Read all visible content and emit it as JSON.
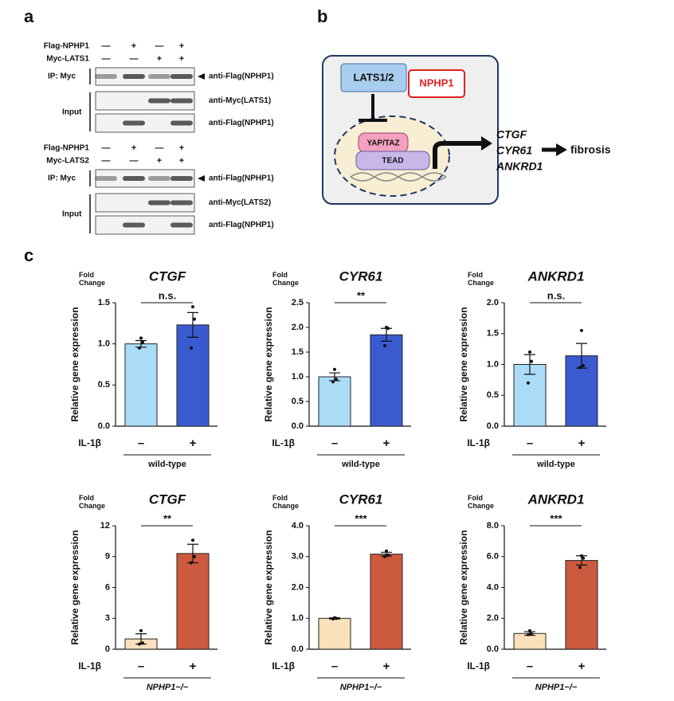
{
  "panel_labels": [
    "a",
    "b",
    "c"
  ],
  "blot": {
    "blocks": [
      {
        "rows": [
          {
            "label": "Flag-NPHP1",
            "signs": [
              "—",
              "+",
              "—",
              "+"
            ]
          },
          {
            "label": "Myc-LATS1",
            "signs": [
              "—",
              "—",
              "+",
              "+"
            ]
          }
        ],
        "ip_label": "IP: Myc",
        "input_label": "Input",
        "antibodies": [
          "anti-Flag(NPHP1)",
          "anti-Myc(LATS1)",
          "anti-Flag(NPHP1)"
        ]
      },
      {
        "rows": [
          {
            "label": "Flag-NPHP1",
            "signs": [
              "—",
              "+",
              "—",
              "+"
            ]
          },
          {
            "label": "Myc-LATS2",
            "signs": [
              "—",
              "—",
              "+",
              "+"
            ]
          }
        ],
        "ip_label": "IP: Myc",
        "input_label": "Input",
        "antibodies": [
          "anti-Flag(NPHP1)",
          "anti-Myc(LATS2)",
          "anti-Flag(NPHP1)"
        ]
      }
    ]
  },
  "diagram": {
    "kinase": "LATS1/2",
    "inhibitor": "NPHP1",
    "coactivator": "YAP/TAZ",
    "factor": "TEAD",
    "targets": [
      "CTGF",
      "CYR61",
      "ANKRD1"
    ],
    "outcome": "fibrosis"
  },
  "chart_data": [
    {
      "type": "bar",
      "title": "CTGF",
      "y_unit": "Fold Change",
      "ylabel": "Relative gene expression",
      "xlabel": "IL-1β",
      "categories": [
        "–",
        "+"
      ],
      "group": "wild-type",
      "group_italic": false,
      "values": [
        1.0,
        1.23
      ],
      "errors": [
        0.04,
        0.15
      ],
      "points": [
        [
          1.07,
          1.02,
          0.95
        ],
        [
          1.45,
          1.3,
          0.95
        ]
      ],
      "colors": [
        "#aadcf7",
        "#3a5bd0"
      ],
      "significance": "n.s.",
      "ylim": [
        0,
        1.5
      ],
      "yticks": [
        {
          "value": 0,
          "label": "0.0"
        },
        {
          "value": 0.5,
          "label": "0.5"
        },
        {
          "value": 1,
          "label": "1.0"
        },
        {
          "value": 1.5,
          "label": "1.5"
        }
      ]
    },
    {
      "type": "bar",
      "title": "CYR61",
      "y_unit": "Fold Change",
      "ylabel": "Relative gene expression",
      "xlabel": "IL-1β",
      "categories": [
        "–",
        "+"
      ],
      "group": "wild-type",
      "group_italic": false,
      "values": [
        1.0,
        1.85
      ],
      "errors": [
        0.08,
        0.13
      ],
      "points": [
        [
          1.15,
          0.95,
          0.9
        ],
        [
          2.0,
          1.98,
          1.63
        ]
      ],
      "colors": [
        "#aadcf7",
        "#3a5bd0"
      ],
      "significance": "**",
      "ylim": [
        0,
        2.5
      ],
      "yticks": [
        {
          "value": 0,
          "label": "0.0"
        },
        {
          "value": 0.5,
          "label": "0.5"
        },
        {
          "value": 1,
          "label": "1.0"
        },
        {
          "value": 1.5,
          "label": "1.5"
        },
        {
          "value": 2,
          "label": "2.0"
        },
        {
          "value": 2.5,
          "label": "2.5"
        }
      ]
    },
    {
      "type": "bar",
      "title": "ANKRD1",
      "y_unit": "Fold Change",
      "ylabel": "Relative gene expression",
      "xlabel": "IL-1β",
      "categories": [
        "–",
        "+"
      ],
      "group": "wild-type",
      "group_italic": false,
      "values": [
        1.0,
        1.14
      ],
      "errors": [
        0.16,
        0.2
      ],
      "points": [
        [
          1.2,
          1.05,
          0.7
        ],
        [
          1.55,
          0.98,
          0.95
        ]
      ],
      "colors": [
        "#aadcf7",
        "#3a5bd0"
      ],
      "significance": "n.s.",
      "ylim": [
        0,
        2.0
      ],
      "yticks": [
        {
          "value": 0,
          "label": "0.0"
        },
        {
          "value": 0.5,
          "label": "0.5"
        },
        {
          "value": 1,
          "label": "1.0"
        },
        {
          "value": 1.5,
          "label": "1.5"
        },
        {
          "value": 2,
          "label": "2.0"
        }
      ]
    },
    {
      "type": "bar",
      "title": "CTGF",
      "y_unit": "Fold Change",
      "ylabel": "Relative gene expression",
      "xlabel": "IL-1β",
      "categories": [
        "–",
        "+"
      ],
      "group": "NPHP1−/−",
      "group_italic": true,
      "values": [
        1.0,
        9.3
      ],
      "errors": [
        0.5,
        0.9
      ],
      "points": [
        [
          1.8,
          0.6,
          0.5
        ],
        [
          10.6,
          9.0,
          8.4
        ]
      ],
      "colors": [
        "#fbe0bc",
        "#cc5a3e"
      ],
      "significance": "**",
      "ylim": [
        0,
        12
      ],
      "yticks": [
        0,
        3,
        6,
        9,
        12
      ]
    },
    {
      "type": "bar",
      "title": "CYR61",
      "y_unit": "Fold Change",
      "ylabel": "Relative gene expression",
      "xlabel": "IL-1β",
      "categories": [
        "–",
        "+"
      ],
      "group": "NPHP1−/−",
      "group_italic": true,
      "values": [
        1.0,
        3.08
      ],
      "errors": [
        0.02,
        0.06
      ],
      "points": [
        [
          1.02,
          1.0,
          0.98
        ],
        [
          3.18,
          3.05,
          3.0
        ]
      ],
      "colors": [
        "#fbe0bc",
        "#cc5a3e"
      ],
      "significance": "***",
      "ylim": [
        0,
        4.0
      ],
      "yticks": [
        {
          "value": 0,
          "label": "0.0"
        },
        {
          "value": 1,
          "label": "1.0"
        },
        {
          "value": 2,
          "label": "2.0"
        },
        {
          "value": 3,
          "label": "3.0"
        },
        {
          "value": 4,
          "label": "4.0"
        }
      ]
    },
    {
      "type": "bar",
      "title": "ANKRD1",
      "y_unit": "Fold Change",
      "ylabel": "Relative gene expression",
      "xlabel": "IL-1β",
      "categories": [
        "–",
        "+"
      ],
      "group": "NPHP1−/−",
      "group_italic": true,
      "values": [
        1.02,
        5.75
      ],
      "errors": [
        0.12,
        0.3
      ],
      "points": [
        [
          1.2,
          1.0,
          0.95
        ],
        [
          6.05,
          5.9,
          5.3
        ]
      ],
      "colors": [
        "#fbe0bc",
        "#cc5a3e"
      ],
      "significance": "***",
      "ylim": [
        0,
        8.0
      ],
      "yticks": [
        {
          "value": 0,
          "label": "0.0"
        },
        {
          "value": 2,
          "label": "2.0"
        },
        {
          "value": 4,
          "label": "4.0"
        },
        {
          "value": 6,
          "label": "6.0"
        },
        {
          "value": 8,
          "label": "8.0"
        }
      ]
    }
  ]
}
